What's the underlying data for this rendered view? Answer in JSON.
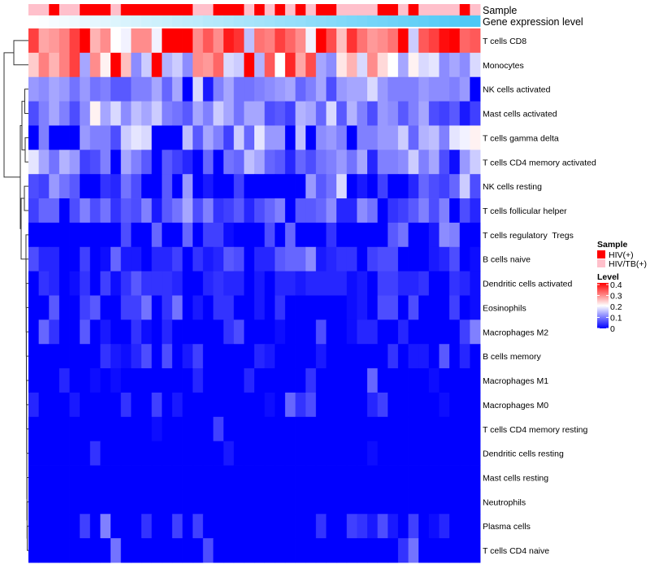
{
  "chart_data": {
    "type": "heatmap",
    "title": "",
    "rows": [
      "T cells CD8",
      "Monocytes",
      "NK cells activated",
      "Mast cells activated",
      "T cells gamma delta",
      "T cells CD4 memory activated",
      "NK cells resting",
      "T cells follicular helper",
      "T cells regulatory  Tregs",
      "B cells naive",
      "Dendritic cells activated",
      "Eosinophils",
      "Macrophages M2",
      "B cells memory",
      "Macrophages M1",
      "Macrophages M0",
      "T cells CD4 memory resting",
      "Dendritic cells resting",
      "Mast cells resting",
      "Neutrophils",
      "Plasma cells",
      "T cells CD4 naive"
    ],
    "n_columns": 44,
    "values": [
      [
        0.35,
        0.27,
        0.28,
        0.3,
        0.35,
        0.4,
        0.26,
        0.29,
        0.2,
        0.19,
        0.29,
        0.29,
        0.19,
        0.4,
        0.4,
        0.4,
        0.29,
        0.33,
        0.29,
        0.38,
        0.36,
        0.15,
        0.31,
        0.3,
        0.35,
        0.32,
        0.29,
        0.19,
        0.4,
        0.34,
        0.25,
        0.36,
        0.31,
        0.28,
        0.29,
        0.31,
        0.4,
        0.16,
        0.33,
        0.35,
        0.39,
        0.4,
        0.32,
        0.33
      ],
      [
        0.24,
        0.3,
        0.26,
        0.3,
        0.35,
        0.13,
        0.29,
        0.21,
        0.4,
        0.25,
        0.11,
        0.16,
        0.4,
        0.14,
        0.16,
        0.11,
        0.29,
        0.28,
        0.32,
        0.17,
        0.16,
        0.4,
        0.14,
        0.33,
        0.2,
        0.37,
        0.27,
        0.34,
        0.13,
        0.11,
        0.22,
        0.26,
        0.17,
        0.29,
        0.23,
        0.2,
        0.13,
        0.21,
        0.17,
        0.18,
        0.11,
        0.13,
        0.11,
        0.17
      ],
      [
        0.12,
        0.11,
        0.13,
        0.12,
        0.09,
        0.12,
        0.09,
        0.1,
        0.07,
        0.07,
        0.1,
        0.1,
        0.13,
        0.08,
        0.13,
        0,
        0.17,
        0.02,
        0.1,
        0.13,
        0.09,
        0.09,
        0.1,
        0.11,
        0.12,
        0.13,
        0.08,
        0.1,
        0.13,
        0.06,
        0.12,
        0.13,
        0.13,
        0.17,
        0.12,
        0.1,
        0.1,
        0.1,
        0.12,
        0.11,
        0.11,
        0.1,
        0.12,
        0
      ],
      [
        0.06,
        0.1,
        0.13,
        0.1,
        0.06,
        0.11,
        0.21,
        0.13,
        0.17,
        0.11,
        0.15,
        0.13,
        0.16,
        0.1,
        0.09,
        0.07,
        0.13,
        0.1,
        0.16,
        0.13,
        0.09,
        0.13,
        0.13,
        0.06,
        0.07,
        0.05,
        0.14,
        0.13,
        0.08,
        0.17,
        0.07,
        0.14,
        0.1,
        0.06,
        0.12,
        0.11,
        0.07,
        0.1,
        0.13,
        0.06,
        0.05,
        0.07,
        0.02,
        0.05
      ],
      [
        0,
        0.1,
        0,
        0,
        0,
        0.12,
        0.1,
        0.1,
        0.06,
        0.16,
        0.18,
        0.17,
        0,
        0,
        0,
        0.15,
        0.07,
        0.13,
        0.1,
        0.05,
        0.16,
        0.08,
        0.18,
        0.12,
        0.12,
        0,
        0.15,
        0,
        0.11,
        0.12,
        0.1,
        0,
        0.1,
        0.1,
        0.12,
        0.12,
        0.16,
        0.08,
        0.14,
        0.15,
        0.1,
        0.18,
        0.19,
        0.21
      ],
      [
        0.18,
        0.13,
        0.09,
        0.14,
        0.12,
        0.05,
        0.06,
        0.1,
        0,
        0.13,
        0.1,
        0.07,
        0,
        0.07,
        0.05,
        0.03,
        0,
        0.08,
        0,
        0.09,
        0.08,
        0.15,
        0.13,
        0.08,
        0.07,
        0.03,
        0.08,
        0.06,
        0.09,
        0.1,
        0.12,
        0.09,
        0.13,
        0.03,
        0.1,
        0.1,
        0.11,
        0.16,
        0.1,
        0.13,
        0.06,
        0.01,
        0.12,
        0.16
      ],
      [
        0.06,
        0.05,
        0.12,
        0.09,
        0.07,
        0,
        0,
        0.04,
        0.03,
        0.09,
        0.06,
        0,
        0,
        0.07,
        0,
        0.12,
        0,
        0.02,
        0,
        0,
        0.05,
        0,
        0,
        0,
        0,
        0,
        0,
        0.12,
        0.07,
        0.09,
        0.17,
        0,
        0.02,
        0,
        0.05,
        0,
        0,
        0.03,
        0.08,
        0.06,
        0.05,
        0.08,
        0.16,
        0.06
      ],
      [
        0.05,
        0.08,
        0.08,
        0,
        0.06,
        0.1,
        0.06,
        0.09,
        0.04,
        0.07,
        0.06,
        0.1,
        0.02,
        0.07,
        0.09,
        0.13,
        0.06,
        0.1,
        0.04,
        0.05,
        0.07,
        0.03,
        0.06,
        0.08,
        0.1,
        0,
        0.07,
        0.07,
        0.08,
        0.11,
        0.03,
        0.03,
        0.11,
        0.09,
        0,
        0.04,
        0.05,
        0.07,
        0.1,
        0.06,
        0.1,
        0,
        0.06,
        0.03
      ],
      [
        0,
        0,
        0,
        0,
        0,
        0,
        0,
        0,
        0,
        0.06,
        0,
        0,
        0.08,
        0,
        0,
        0.08,
        0,
        0.05,
        0.05,
        0.01,
        0,
        0,
        0,
        0.06,
        0,
        0.08,
        0,
        0,
        0,
        0.04,
        0,
        0,
        0,
        0,
        0,
        0.07,
        0.09,
        0,
        0,
        0.02,
        0.11,
        0.1,
        0,
        0
      ],
      [
        0.06,
        0.03,
        0.03,
        0,
        0,
        0.05,
        0,
        0.01,
        0.08,
        0.02,
        0.02,
        0,
        0.03,
        0.03,
        0.05,
        0,
        0.04,
        0.02,
        0.03,
        0.07,
        0.06,
        0,
        0.03,
        0.03,
        0.07,
        0.08,
        0.08,
        0.11,
        0.02,
        0.03,
        0.04,
        0.04,
        0,
        0.05,
        0.06,
        0.06,
        0,
        0,
        0,
        0.02,
        0.03,
        0.06,
        0,
        0.01
      ],
      [
        0,
        0.04,
        0.03,
        0,
        0.01,
        0.04,
        0,
        0.05,
        0.01,
        0.04,
        0.07,
        0.04,
        0.04,
        0.04,
        0.03,
        0,
        0,
        0.03,
        0.04,
        0.03,
        0.03,
        0,
        0.02,
        0,
        0.03,
        0.03,
        0.02,
        0.03,
        0.03,
        0.03,
        0.03,
        0.01,
        0.02,
        0,
        0.05,
        0.05,
        0.03,
        0.03,
        0.04,
        0,
        0,
        0.04,
        0.03,
        0.01
      ],
      [
        0,
        0,
        0.07,
        0,
        0,
        0.05,
        0.07,
        0,
        0,
        0.05,
        0.05,
        0.09,
        0,
        0.04,
        0.09,
        0,
        0.02,
        0,
        0.04,
        0.04,
        0,
        0,
        0.02,
        0,
        0.04,
        0,
        0,
        0,
        0,
        0,
        0,
        0.01,
        0.02,
        0,
        0.06,
        0.06,
        0,
        0.06,
        0,
        0,
        0,
        0.05,
        0,
        0.01
      ],
      [
        0,
        0.08,
        0.04,
        0,
        0,
        0.07,
        0,
        0.02,
        0,
        0,
        0.04,
        0.01,
        0,
        0.03,
        0,
        0,
        0,
        0,
        0,
        0.04,
        0.06,
        0,
        0,
        0,
        0.01,
        0,
        0,
        0,
        0.06,
        0,
        0,
        0.01,
        0.03,
        0.03,
        0,
        0,
        0.03,
        0,
        0,
        0,
        0,
        0,
        0.05,
        0.1
      ],
      [
        0,
        0,
        0,
        0,
        0,
        0,
        0,
        0.04,
        0.02,
        0.01,
        0.03,
        0.06,
        0,
        0.06,
        0,
        0.02,
        0.05,
        0,
        0,
        0,
        0,
        0,
        0.03,
        0.02,
        0,
        0,
        0,
        0,
        0.02,
        0,
        0,
        0,
        0,
        0,
        0,
        0.04,
        0,
        0.02,
        0.02,
        0,
        0.07,
        0,
        0.03,
        0
      ],
      [
        0,
        0,
        0,
        0.03,
        0,
        0,
        0.01,
        0,
        0.01,
        0,
        0,
        0,
        0,
        0,
        0,
        0,
        0.03,
        0,
        0,
        0,
        0,
        0.03,
        0,
        0,
        0,
        0,
        0,
        0.04,
        0,
        0,
        0,
        0,
        0,
        0.08,
        0,
        0,
        0,
        0,
        0,
        0.01,
        0,
        0,
        0,
        0
      ],
      [
        0.03,
        0,
        0,
        0,
        0.02,
        0,
        0,
        0,
        0,
        0.04,
        0,
        0,
        0.05,
        0,
        0.02,
        0,
        0,
        0,
        0,
        0,
        0,
        0,
        0,
        0.01,
        0,
        0.08,
        0.04,
        0.06,
        0,
        0,
        0,
        0,
        0,
        0.03,
        0.05,
        0,
        0,
        0,
        0,
        0,
        0.01,
        0,
        0,
        0
      ],
      [
        0,
        0,
        0,
        0,
        0,
        0,
        0,
        0,
        0,
        0,
        0,
        0,
        0.01,
        0,
        0,
        0,
        0,
        0,
        0.05,
        0,
        0,
        0,
        0,
        0,
        0,
        0,
        0,
        0,
        0,
        0,
        0,
        0,
        0,
        0,
        0,
        0,
        0,
        0,
        0,
        0,
        0,
        0,
        0,
        0
      ],
      [
        0,
        0,
        0,
        0,
        0,
        0,
        0.04,
        0,
        0,
        0,
        0,
        0,
        0,
        0,
        0,
        0,
        0,
        0,
        0,
        0.02,
        0,
        0,
        0,
        0,
        0,
        0,
        0,
        0,
        0,
        0,
        0,
        0,
        0,
        0.01,
        0,
        0,
        0,
        0,
        0,
        0,
        0,
        0,
        0,
        0
      ],
      [
        0,
        0,
        0,
        0,
        0,
        0,
        0,
        0,
        0,
        0,
        0,
        0,
        0,
        0,
        0,
        0,
        0,
        0,
        0,
        0,
        0,
        0,
        0,
        0,
        0,
        0,
        0,
        0,
        0,
        0,
        0,
        0,
        0,
        0,
        0,
        0,
        0,
        0,
        0,
        0,
        0,
        0,
        0,
        0
      ],
      [
        0,
        0,
        0,
        0,
        0,
        0,
        0,
        0,
        0,
        0,
        0,
        0,
        0,
        0,
        0,
        0,
        0,
        0,
        0,
        0,
        0,
        0,
        0,
        0,
        0,
        0,
        0,
        0,
        0,
        0,
        0,
        0,
        0,
        0,
        0,
        0,
        0,
        0,
        0,
        0,
        0,
        0,
        0,
        0
      ],
      [
        0,
        0,
        0,
        0,
        0,
        0.05,
        0,
        0.1,
        0,
        0,
        0,
        0.04,
        0,
        0,
        0.05,
        0,
        0.05,
        0,
        0,
        0,
        0,
        0,
        0,
        0,
        0,
        0,
        0,
        0,
        0.04,
        0,
        0,
        0.05,
        0.04,
        0.02,
        0.06,
        0.02,
        0,
        0.05,
        0,
        0.01,
        0.03,
        0,
        0,
        0
      ],
      [
        0,
        0,
        0,
        0,
        0,
        0,
        0,
        0,
        0.09,
        0,
        0,
        0,
        0,
        0,
        0,
        0,
        0,
        0.06,
        0,
        0,
        0,
        0,
        0,
        0,
        0,
        0,
        0,
        0,
        0,
        0,
        0,
        0,
        0,
        0,
        0,
        0,
        0.04,
        0.09,
        0,
        0,
        0,
        0,
        0,
        0
      ]
    ],
    "color_scale": {
      "min": 0,
      "mid": 0.2,
      "max": 0.4,
      "low_color": "#0000ff",
      "mid_color": "#ffffff",
      "high_color": "#ff0000"
    },
    "annotations": {
      "sample_label": "Sample",
      "sample_groups": [
        1,
        1,
        0,
        1,
        1,
        0,
        0,
        0,
        1,
        0,
        0,
        0,
        0,
        0,
        0,
        0,
        1,
        1,
        0,
        0,
        0,
        1,
        0,
        1,
        0,
        1,
        0,
        1,
        0,
        0,
        1,
        1,
        1,
        1,
        0,
        0,
        1,
        0,
        1,
        1,
        1,
        1,
        0,
        1
      ],
      "gene_label": "Gene expression level",
      "gene_expression_level": [
        0,
        0.02,
        0.05,
        0.07,
        0.09,
        0.12,
        0.14,
        0.16,
        0.19,
        0.21,
        0.23,
        0.26,
        0.28,
        0.3,
        0.33,
        0.35,
        0.37,
        0.4,
        0.42,
        0.44,
        0.47,
        0.49,
        0.51,
        0.53,
        0.56,
        0.58,
        0.6,
        0.63,
        0.65,
        0.67,
        0.7,
        0.72,
        0.74,
        0.77,
        0.79,
        0.81,
        0.84,
        0.86,
        0.88,
        0.91,
        0.93,
        0.95,
        0.98,
        1
      ],
      "gene_low_color": "#ffffff",
      "gene_high_color": "#4cc8f6"
    },
    "legend": {
      "sample_title": "Sample",
      "sample_entries": [
        {
          "label": "HIV(+)",
          "color": "#ff0000"
        },
        {
          "label": "HIV/TB(+)",
          "color": "#ffc0cb"
        }
      ],
      "level_title": "Level",
      "level_ticks": [
        "0.4",
        "0.3",
        "0.2",
        "0.1",
        "0"
      ],
      "level_tick_values": [
        0.4,
        0.3,
        0.2,
        0.1,
        0
      ],
      "placement": "right"
    },
    "row_dendrogram": true
  }
}
